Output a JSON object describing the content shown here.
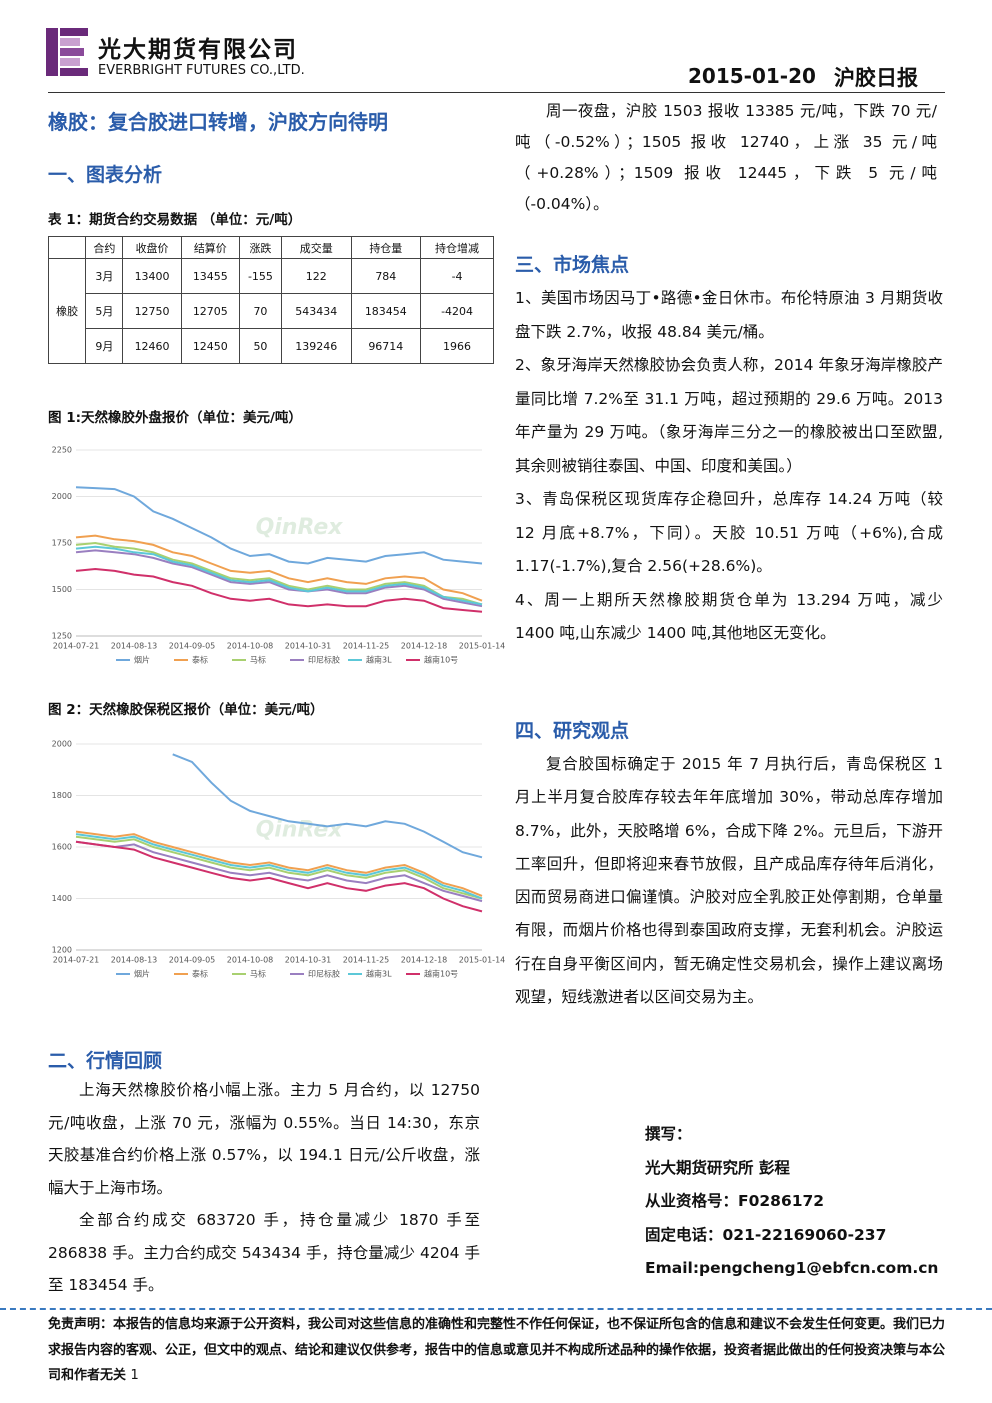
{
  "header": {
    "company": "光大期货有限公司",
    "company_en": "EVERBRIGHT FUTURES CO.,LTD.",
    "date": "2015-01-20",
    "report_name": "沪胶日报"
  },
  "title": "橡胶：复合胶进口转增，沪胶方向待明",
  "section1": {
    "heading": "一、图表分析"
  },
  "table": {
    "caption": "表 1：期货合约交易数据 （单位：元/吨）",
    "columns": [
      "合约",
      "收盘价",
      "结算价",
      "涨跌",
      "成交量",
      "持仓量",
      "持仓增减"
    ],
    "group": "橡胶",
    "rows": [
      [
        "3月",
        13400,
        13455,
        -155,
        122,
        784,
        -4
      ],
      [
        "5月",
        12750,
        12705,
        70,
        543434,
        183454,
        -4204
      ],
      [
        "9月",
        12460,
        12450,
        50,
        139246,
        96714,
        1966
      ]
    ]
  },
  "chart_data": [
    {
      "type": "line",
      "title": "图 1:天然橡胶外盘报价（单位：美元/吨）",
      "watermark": "QinRex",
      "categories": [
        "2014-07-21",
        null,
        null,
        "2014-08-13",
        null,
        null,
        "2014-09-05",
        null,
        null,
        "2014-10-08",
        null,
        null,
        "2014-10-31",
        null,
        null,
        "2014-11-25",
        null,
        null,
        "2014-12-18",
        null,
        null,
        "2015-01-14"
      ],
      "ylim": [
        1250,
        2250
      ],
      "yticks": [
        1250,
        1500,
        1750,
        2000,
        2250
      ],
      "grid": true,
      "series": [
        {
          "name": "烟片",
          "color": "#6fa8dc",
          "values": [
            2050,
            2045,
            2040,
            2000,
            1920,
            1880,
            1830,
            1780,
            1720,
            1680,
            1690,
            1650,
            1640,
            1670,
            1660,
            1650,
            1680,
            1690,
            1700,
            1660,
            1650,
            1640
          ]
        },
        {
          "name": "泰标",
          "color": "#f0a050",
          "values": [
            1780,
            1790,
            1770,
            1760,
            1740,
            1700,
            1680,
            1640,
            1600,
            1590,
            1600,
            1560,
            1540,
            1560,
            1540,
            1530,
            1560,
            1570,
            1560,
            1500,
            1480,
            1440
          ]
        },
        {
          "name": "马标",
          "color": "#a8d070",
          "values": [
            1740,
            1750,
            1730,
            1720,
            1700,
            1660,
            1640,
            1600,
            1560,
            1550,
            1560,
            1520,
            1500,
            1520,
            1500,
            1500,
            1530,
            1540,
            1520,
            1460,
            1450,
            1420
          ]
        },
        {
          "name": "印尼标胶",
          "color": "#9a7fc0",
          "values": [
            1700,
            1710,
            1700,
            1690,
            1670,
            1640,
            1620,
            1580,
            1540,
            1530,
            1540,
            1500,
            1490,
            1500,
            1480,
            1480,
            1510,
            1520,
            1500,
            1450,
            1430,
            1410
          ]
        },
        {
          "name": "越南3L",
          "color": "#5cc8d8",
          "values": [
            1720,
            1730,
            1720,
            1700,
            1690,
            1650,
            1630,
            1590,
            1550,
            1540,
            1550,
            1510,
            1490,
            1510,
            1490,
            1490,
            1520,
            1530,
            1510,
            1460,
            1440,
            1420
          ]
        },
        {
          "name": "越南10号",
          "color": "#d0306a",
          "values": [
            1600,
            1610,
            1600,
            1580,
            1570,
            1540,
            1520,
            1480,
            1450,
            1440,
            1450,
            1420,
            1410,
            1420,
            1410,
            1410,
            1440,
            1450,
            1440,
            1400,
            1390,
            1380
          ]
        }
      ]
    },
    {
      "type": "line",
      "title": "图 2：天然橡胶保税区报价（单位：美元/吨）",
      "watermark": "QinRex",
      "categories": [
        "2014-07-21",
        null,
        null,
        "2014-08-13",
        null,
        null,
        "2014-09-05",
        null,
        null,
        "2014-10-08",
        null,
        null,
        "2014-10-31",
        null,
        null,
        "2014-11-25",
        null,
        null,
        "2014-12-18",
        null,
        null,
        "2015-01-14"
      ],
      "ylim": [
        1200,
        2000
      ],
      "yticks": [
        1200,
        1400,
        1600,
        1800,
        2000
      ],
      "grid": true,
      "series": [
        {
          "name": "烟片",
          "color": "#6fa8dc",
          "values": [
            null,
            null,
            null,
            null,
            null,
            1960,
            1930,
            1850,
            1780,
            1740,
            1720,
            1700,
            1690,
            1680,
            1690,
            1680,
            1700,
            1690,
            1660,
            1620,
            1580,
            1560
          ]
        },
        {
          "name": "泰标",
          "color": "#f0a050",
          "values": [
            1660,
            1650,
            1640,
            1650,
            1620,
            1600,
            1580,
            1560,
            1540,
            1530,
            1540,
            1520,
            1510,
            1530,
            1510,
            1500,
            1520,
            1530,
            1500,
            1460,
            1440,
            1410
          ]
        },
        {
          "name": "马标",
          "color": "#a8d070",
          "values": [
            1640,
            1630,
            1620,
            1630,
            1600,
            1580,
            1560,
            1540,
            1520,
            1510,
            1520,
            1500,
            1490,
            1510,
            1490,
            1480,
            1500,
            1510,
            1480,
            1440,
            1420,
            1400
          ]
        },
        {
          "name": "印尼标胶",
          "color": "#9a7fc0",
          "values": [
            1620,
            1610,
            1600,
            1610,
            1580,
            1560,
            1540,
            1520,
            1500,
            1490,
            1500,
            1480,
            1470,
            1490,
            1470,
            1460,
            1480,
            1490,
            1460,
            1430,
            1410,
            1390
          ]
        },
        {
          "name": "越南3L",
          "color": "#5cc8d8",
          "values": [
            1650,
            1640,
            1630,
            1640,
            1610,
            1590,
            1570,
            1550,
            1530,
            1520,
            1530,
            1510,
            1500,
            1520,
            1500,
            1490,
            1510,
            1520,
            1490,
            1450,
            1430,
            1400
          ]
        },
        {
          "name": "越南10号",
          "color": "#d0306a",
          "values": [
            1620,
            1610,
            1600,
            1590,
            1560,
            1540,
            1520,
            1500,
            1480,
            1470,
            1480,
            1460,
            1440,
            1460,
            1440,
            1430,
            1450,
            1460,
            1440,
            1400,
            1370,
            1350
          ]
        }
      ]
    }
  ],
  "section2": {
    "heading": "二、行情回顾",
    "paragraphs": [
      "上海天然橡胶价格小幅上涨。主力 5 月合约，以 12750 元/吨收盘，上涨 70 元，涨幅为 0.55%。当日 14:30，东京天胶基准合约价格上涨 0.57%，以 194.1 日元/公斤收盘，涨幅大于上海市场。",
      "全部合约成交 683720 手，持仓量减少 1870 手至 286838 手。主力合约成交 543434 手，持仓量减少 4204 手至 183454 手。"
    ]
  },
  "night": "周一夜盘，沪胶 1503 报收 13385 元/吨，下跌 70 元/吨（-0.52%）；1505 报收 12740，上涨 35 元/吨（+0.28%）；1509 报收 12445，下跌 5 元/吨（-0.04%）。",
  "section3": {
    "heading": "三、市场焦点",
    "items": [
      "1、美国市场因马丁•路德•金日休市。布伦特原油 3 月期货收盘下跌 2.7%，收报 48.84 美元/桶。",
      "2、象牙海岸天然橡胶协会负责人称，2014 年象牙海岸橡胶产量同比增 7.2%至 31.1 万吨，超过预期的 29.6 万吨。2013 年产量为 29 万吨。（象牙海岸三分之一的橡胶被出口至欧盟,其余则被销往泰国、中国、印度和美国。）",
      "3、青岛保税区现货库存企稳回升，总库存 14.24 万吨（较 12 月底+8.7%，下同）。天胶 10.51 万吨（+6%),合成 1.17(-1.7%),复合 2.56(+28.6%)。",
      "4、周一上期所天然橡胶期货仓单为 13.294 万吨，减少 1400 吨,山东减少 1400 吨,其他地区无变化。"
    ]
  },
  "section4": {
    "heading": "四、研究观点",
    "paragraph": "复合胶国标确定于 2015 年 7 月执行后，青岛保税区 1 月上半月复合胶库存较去年年底增加 30%，带动总库存增加 8.7%，此外，天胶略增 6%，合成下降 2%。元旦后，下游开工率回升，但即将迎来春节放假，且产成品库存待年后消化，因而贸易商进口偏谨慎。沪胶对应全乳胶正处停割期，仓单量有限，而烟片价格也得到泰国政府支撑，无套利机会。沪胶运行在自身平衡区间内，暂无确定性交易机会，操作上建议离场观望，短线激进者以区间交易为主。"
  },
  "author": [
    "撰写：",
    "光大期货研究所 彭程",
    "从业资格号：F0286172",
    "固定电话：021-22169060-237",
    "Email:pengcheng1@ebfcn.com.cn"
  ],
  "footer": {
    "disclaimer": "免责声明：本报告的信息均来源于公开资料，我公司对这些信息的准确性和完整性不作任何保证，也不保证所包含的信息和建议不会发生任何变更。我们已力求报告内容的客观、公正，但文中的观点、结论和建议仅供参考，报告中的信息或意见并不构成所述品种的操作依据，投资者据此做出的任何投资决策与本公司和作者无关",
    "page": "1"
  }
}
